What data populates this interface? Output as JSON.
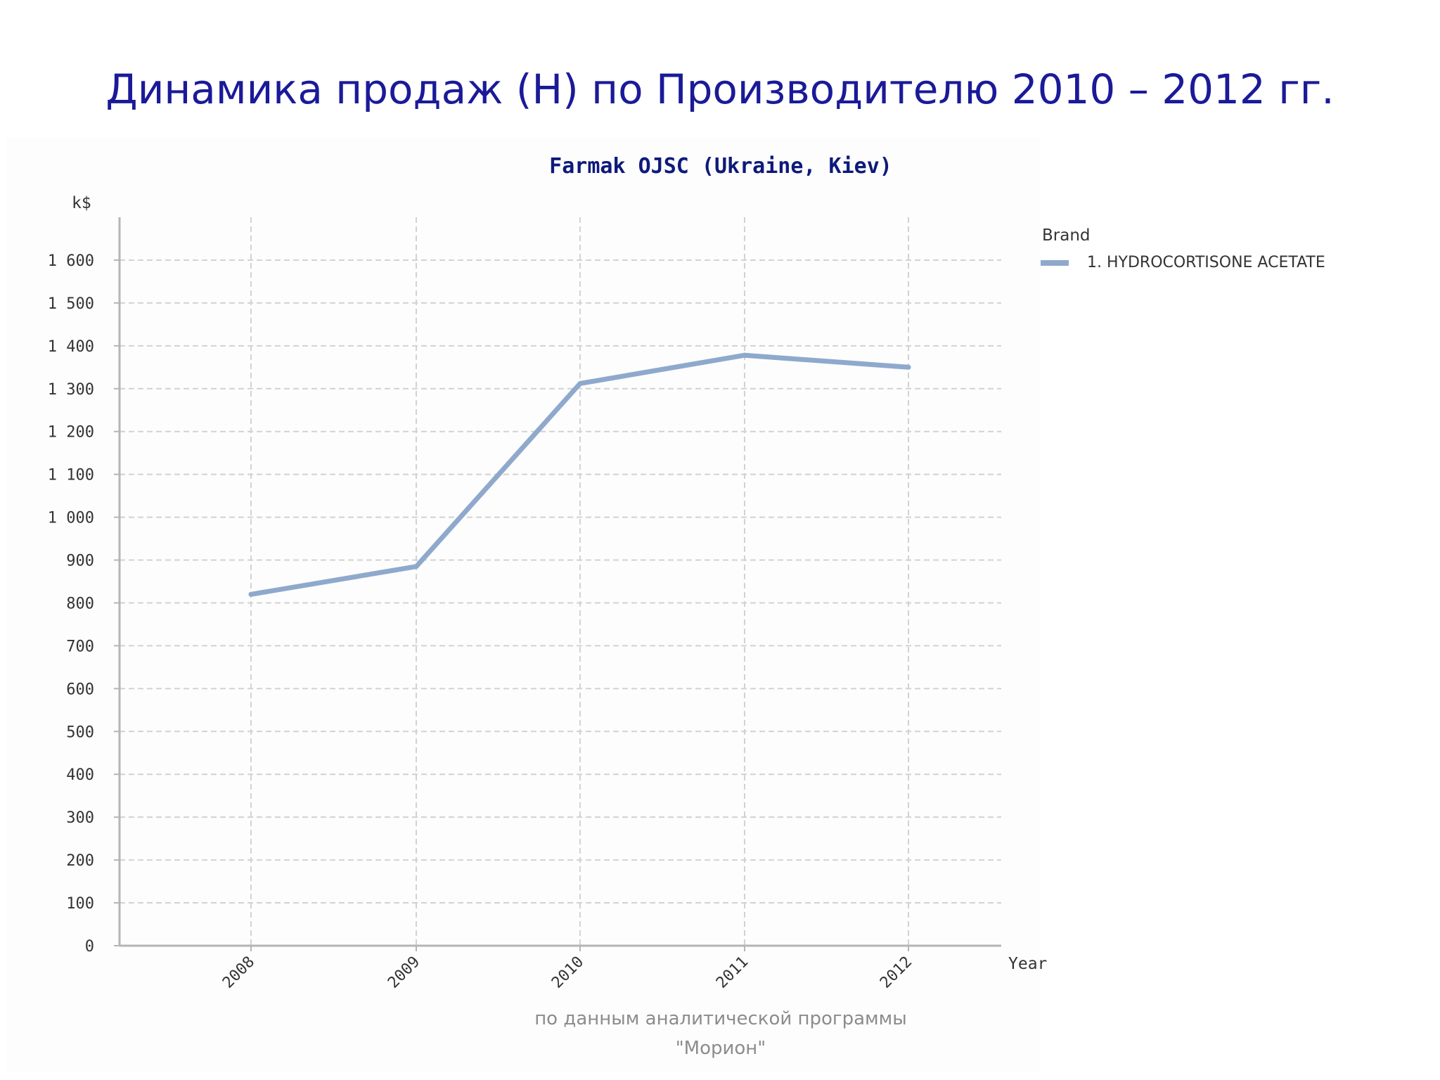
{
  "slide": {
    "title": "Динамика продаж (Н) по Производителю 2010 – 2012 гг.",
    "source_line1": "по данным аналитической программы",
    "source_line2": "\"Морион\""
  },
  "colors": {
    "title": "#1a1a99",
    "chart_title": "#0d1a7a",
    "series": "#8fa9cd",
    "grid": "#d2d2d2",
    "axis": "#b5b5b5",
    "text": "#333333"
  },
  "chart_data": {
    "type": "line",
    "title": "Farmak OJSC (Ukraine, Kiev)",
    "ylabel": "k$",
    "xlabel": "Year",
    "x": [
      "2008",
      "2009",
      "2010",
      "2011",
      "2012"
    ],
    "ylim": [
      0,
      1700
    ],
    "yticks": [
      0,
      100,
      200,
      300,
      400,
      500,
      600,
      700,
      800,
      900,
      1000,
      1100,
      1200,
      1300,
      1400,
      1500,
      1600
    ],
    "ytick_labels": [
      "0",
      "100",
      "200",
      "300",
      "400",
      "500",
      "600",
      "700",
      "800",
      "900",
      "1 000",
      "1 100",
      "1 200",
      "1 300",
      "1 400",
      "1 500",
      "1 600"
    ],
    "grid": true,
    "legend": {
      "title": "Brand",
      "placement": "right",
      "entries": [
        "1. HYDROCORTISONE ACETATE"
      ]
    },
    "series": [
      {
        "name": "1. HYDROCORTISONE ACETATE",
        "values": [
          820,
          885,
          1312,
          1378,
          1350
        ]
      }
    ]
  }
}
